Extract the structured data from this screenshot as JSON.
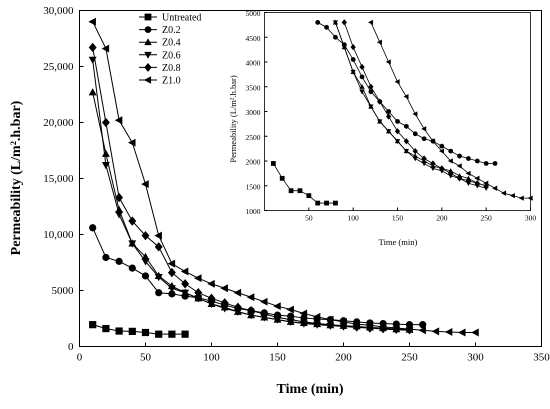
{
  "chart_data": [
    {
      "type": "scatter",
      "xlabel": "Time (min)",
      "ylabel": "Permeability (L/m².h.bar)",
      "xlim": [
        0,
        350
      ],
      "ylim": [
        0,
        30000
      ],
      "xticks": [
        "0",
        "50",
        "100",
        "150",
        "200",
        "250",
        "300",
        "350"
      ],
      "yticks": [
        "0",
        "5000",
        "10,000",
        "15,000",
        "20,000",
        "25,000",
        "30,000"
      ],
      "legend": "top-left",
      "grid": false,
      "series": [
        {
          "name": "Untreated",
          "marker": "square",
          "x": [
            10,
            20,
            30,
            40,
            50,
            60,
            70,
            80
          ],
          "y": [
            1950,
            1600,
            1380,
            1350,
            1250,
            1100,
            1100,
            1100
          ]
        },
        {
          "name": "Z0.2",
          "marker": "circle",
          "x": [
            10,
            20,
            30,
            40,
            50,
            60,
            70,
            80,
            90,
            100,
            110,
            120,
            130,
            140,
            150,
            160,
            170,
            180,
            190,
            200,
            210,
            220,
            230,
            240,
            250,
            260
          ],
          "y": [
            10600,
            7950,
            7600,
            7000,
            6300,
            4800,
            4700,
            4500,
            4350,
            4050,
            3700,
            3400,
            3200,
            3000,
            2800,
            2700,
            2550,
            2450,
            2400,
            2300,
            2200,
            2100,
            2050,
            2000,
            1950,
            1950
          ]
        },
        {
          "name": "Z0.4",
          "marker": "triangle-up",
          "x": [
            10,
            20,
            30,
            40,
            50,
            60,
            70,
            80,
            90,
            100,
            110,
            120,
            130,
            140,
            150,
            160,
            170,
            180,
            190,
            200,
            210,
            220,
            230,
            240,
            250
          ],
          "y": [
            22700,
            17200,
            12200,
            9200,
            8000,
            6300,
            5400,
            4800,
            4300,
            3800,
            3500,
            3100,
            2800,
            2600,
            2400,
            2200,
            2100,
            2000,
            1900,
            1850,
            1800,
            1700,
            1650,
            1550,
            1500
          ]
        },
        {
          "name": "Z0.6",
          "marker": "triangle-down",
          "x": [
            10,
            20,
            30,
            40,
            50,
            60,
            70,
            80,
            90,
            100,
            110,
            120,
            130,
            140,
            150,
            160,
            170,
            180,
            190,
            200,
            210,
            220,
            230,
            240,
            250
          ],
          "y": [
            25600,
            16200,
            11800,
            9200,
            7600,
            6200,
            5200,
            4800,
            4300,
            3800,
            3400,
            3100,
            2800,
            2600,
            2400,
            2200,
            2050,
            1950,
            1850,
            1800,
            1700,
            1650,
            1550,
            1500,
            1450
          ]
        },
        {
          "name": "Z0.8",
          "marker": "diamond",
          "x": [
            10,
            20,
            30,
            40,
            50,
            60,
            70,
            80,
            90,
            100,
            110,
            120,
            130,
            140,
            150,
            160,
            170,
            180,
            190,
            200,
            210,
            220,
            230,
            240,
            250
          ],
          "y": [
            26700,
            20000,
            13300,
            11200,
            9900,
            8900,
            6600,
            5600,
            4800,
            4300,
            3900,
            3500,
            3200,
            2900,
            2600,
            2400,
            2200,
            2050,
            1950,
            1850,
            1750,
            1650,
            1600,
            1550,
            1500
          ]
        },
        {
          "name": "Z1.0",
          "marker": "triangle-left",
          "x": [
            10,
            20,
            30,
            40,
            50,
            60,
            70,
            80,
            90,
            100,
            110,
            120,
            130,
            140,
            150,
            160,
            170,
            180,
            190,
            200,
            210,
            220,
            230,
            240,
            250,
            260,
            270,
            280,
            290,
            300
          ],
          "y": [
            29000,
            26600,
            20200,
            18200,
            14500,
            9900,
            7400,
            6700,
            6100,
            5600,
            5200,
            4800,
            4400,
            4000,
            3600,
            3300,
            2950,
            2650,
            2400,
            2200,
            2000,
            1900,
            1750,
            1650,
            1550,
            1450,
            1350,
            1300,
            1250,
            1250
          ]
        }
      ]
    },
    {
      "type": "scatter",
      "xlabel": "Time (min)",
      "ylabel": "Permeability (L/m².h.bar)",
      "xlim": [
        0,
        300
      ],
      "ylim": [
        1000,
        5000
      ],
      "xticks": [
        "50",
        "100",
        "150",
        "200",
        "250",
        "300"
      ],
      "yticks": [
        "1000",
        "1500",
        "2000",
        "2500",
        "3000",
        "3500",
        "4000",
        "4500",
        "5000"
      ],
      "grid": false,
      "series": [
        {
          "name": "Untreated",
          "marker": "square",
          "x": [
            10,
            20,
            30,
            40,
            50,
            60,
            70,
            80
          ],
          "y": [
            1950,
            1650,
            1400,
            1400,
            1300,
            1150,
            1150,
            1150
          ]
        },
        {
          "name": "Z0.2",
          "marker": "circle",
          "x": [
            60,
            70,
            80,
            90,
            100,
            110,
            120,
            130,
            140,
            150,
            160,
            170,
            180,
            190,
            200,
            210,
            220,
            230,
            240,
            250,
            260
          ],
          "y": [
            4800,
            4700,
            4500,
            4350,
            4050,
            3700,
            3400,
            3200,
            3000,
            2800,
            2700,
            2550,
            2450,
            2400,
            2300,
            2200,
            2100,
            2050,
            2000,
            1950,
            1950
          ]
        },
        {
          "name": "Z0.4",
          "marker": "triangle-up",
          "x": [
            80,
            90,
            100,
            110,
            120,
            130,
            140,
            150,
            160,
            170,
            180,
            190,
            200,
            210,
            220,
            230,
            240,
            250
          ],
          "y": [
            4800,
            4300,
            3800,
            3500,
            3100,
            2800,
            2600,
            2400,
            2200,
            2100,
            2000,
            1900,
            1850,
            1800,
            1700,
            1650,
            1550,
            1500
          ]
        },
        {
          "name": "Z0.6",
          "marker": "triangle-down",
          "x": [
            80,
            90,
            100,
            110,
            120,
            130,
            140,
            150,
            160,
            170,
            180,
            190,
            200,
            210,
            220,
            230,
            240,
            250
          ],
          "y": [
            4800,
            4300,
            3800,
            3400,
            3100,
            2800,
            2600,
            2400,
            2200,
            2050,
            1950,
            1850,
            1800,
            1700,
            1650,
            1550,
            1500,
            1450
          ]
        },
        {
          "name": "Z0.8",
          "marker": "diamond",
          "x": [
            90,
            100,
            110,
            120,
            130,
            140,
            150,
            160,
            170,
            180,
            190,
            200,
            210,
            220,
            230,
            240,
            250
          ],
          "y": [
            4800,
            4300,
            3900,
            3500,
            3200,
            2900,
            2600,
            2400,
            2200,
            2050,
            1950,
            1850,
            1750,
            1650,
            1600,
            1550,
            1500
          ]
        },
        {
          "name": "Z1.0",
          "marker": "triangle-left",
          "x": [
            120,
            130,
            140,
            150,
            160,
            170,
            180,
            190,
            200,
            210,
            220,
            230,
            240,
            250,
            260,
            270,
            280,
            290,
            300
          ],
          "y": [
            4800,
            4400,
            4000,
            3600,
            3300,
            2950,
            2650,
            2400,
            2200,
            2000,
            1900,
            1750,
            1650,
            1550,
            1450,
            1350,
            1300,
            1250,
            1250
          ]
        }
      ]
    }
  ]
}
